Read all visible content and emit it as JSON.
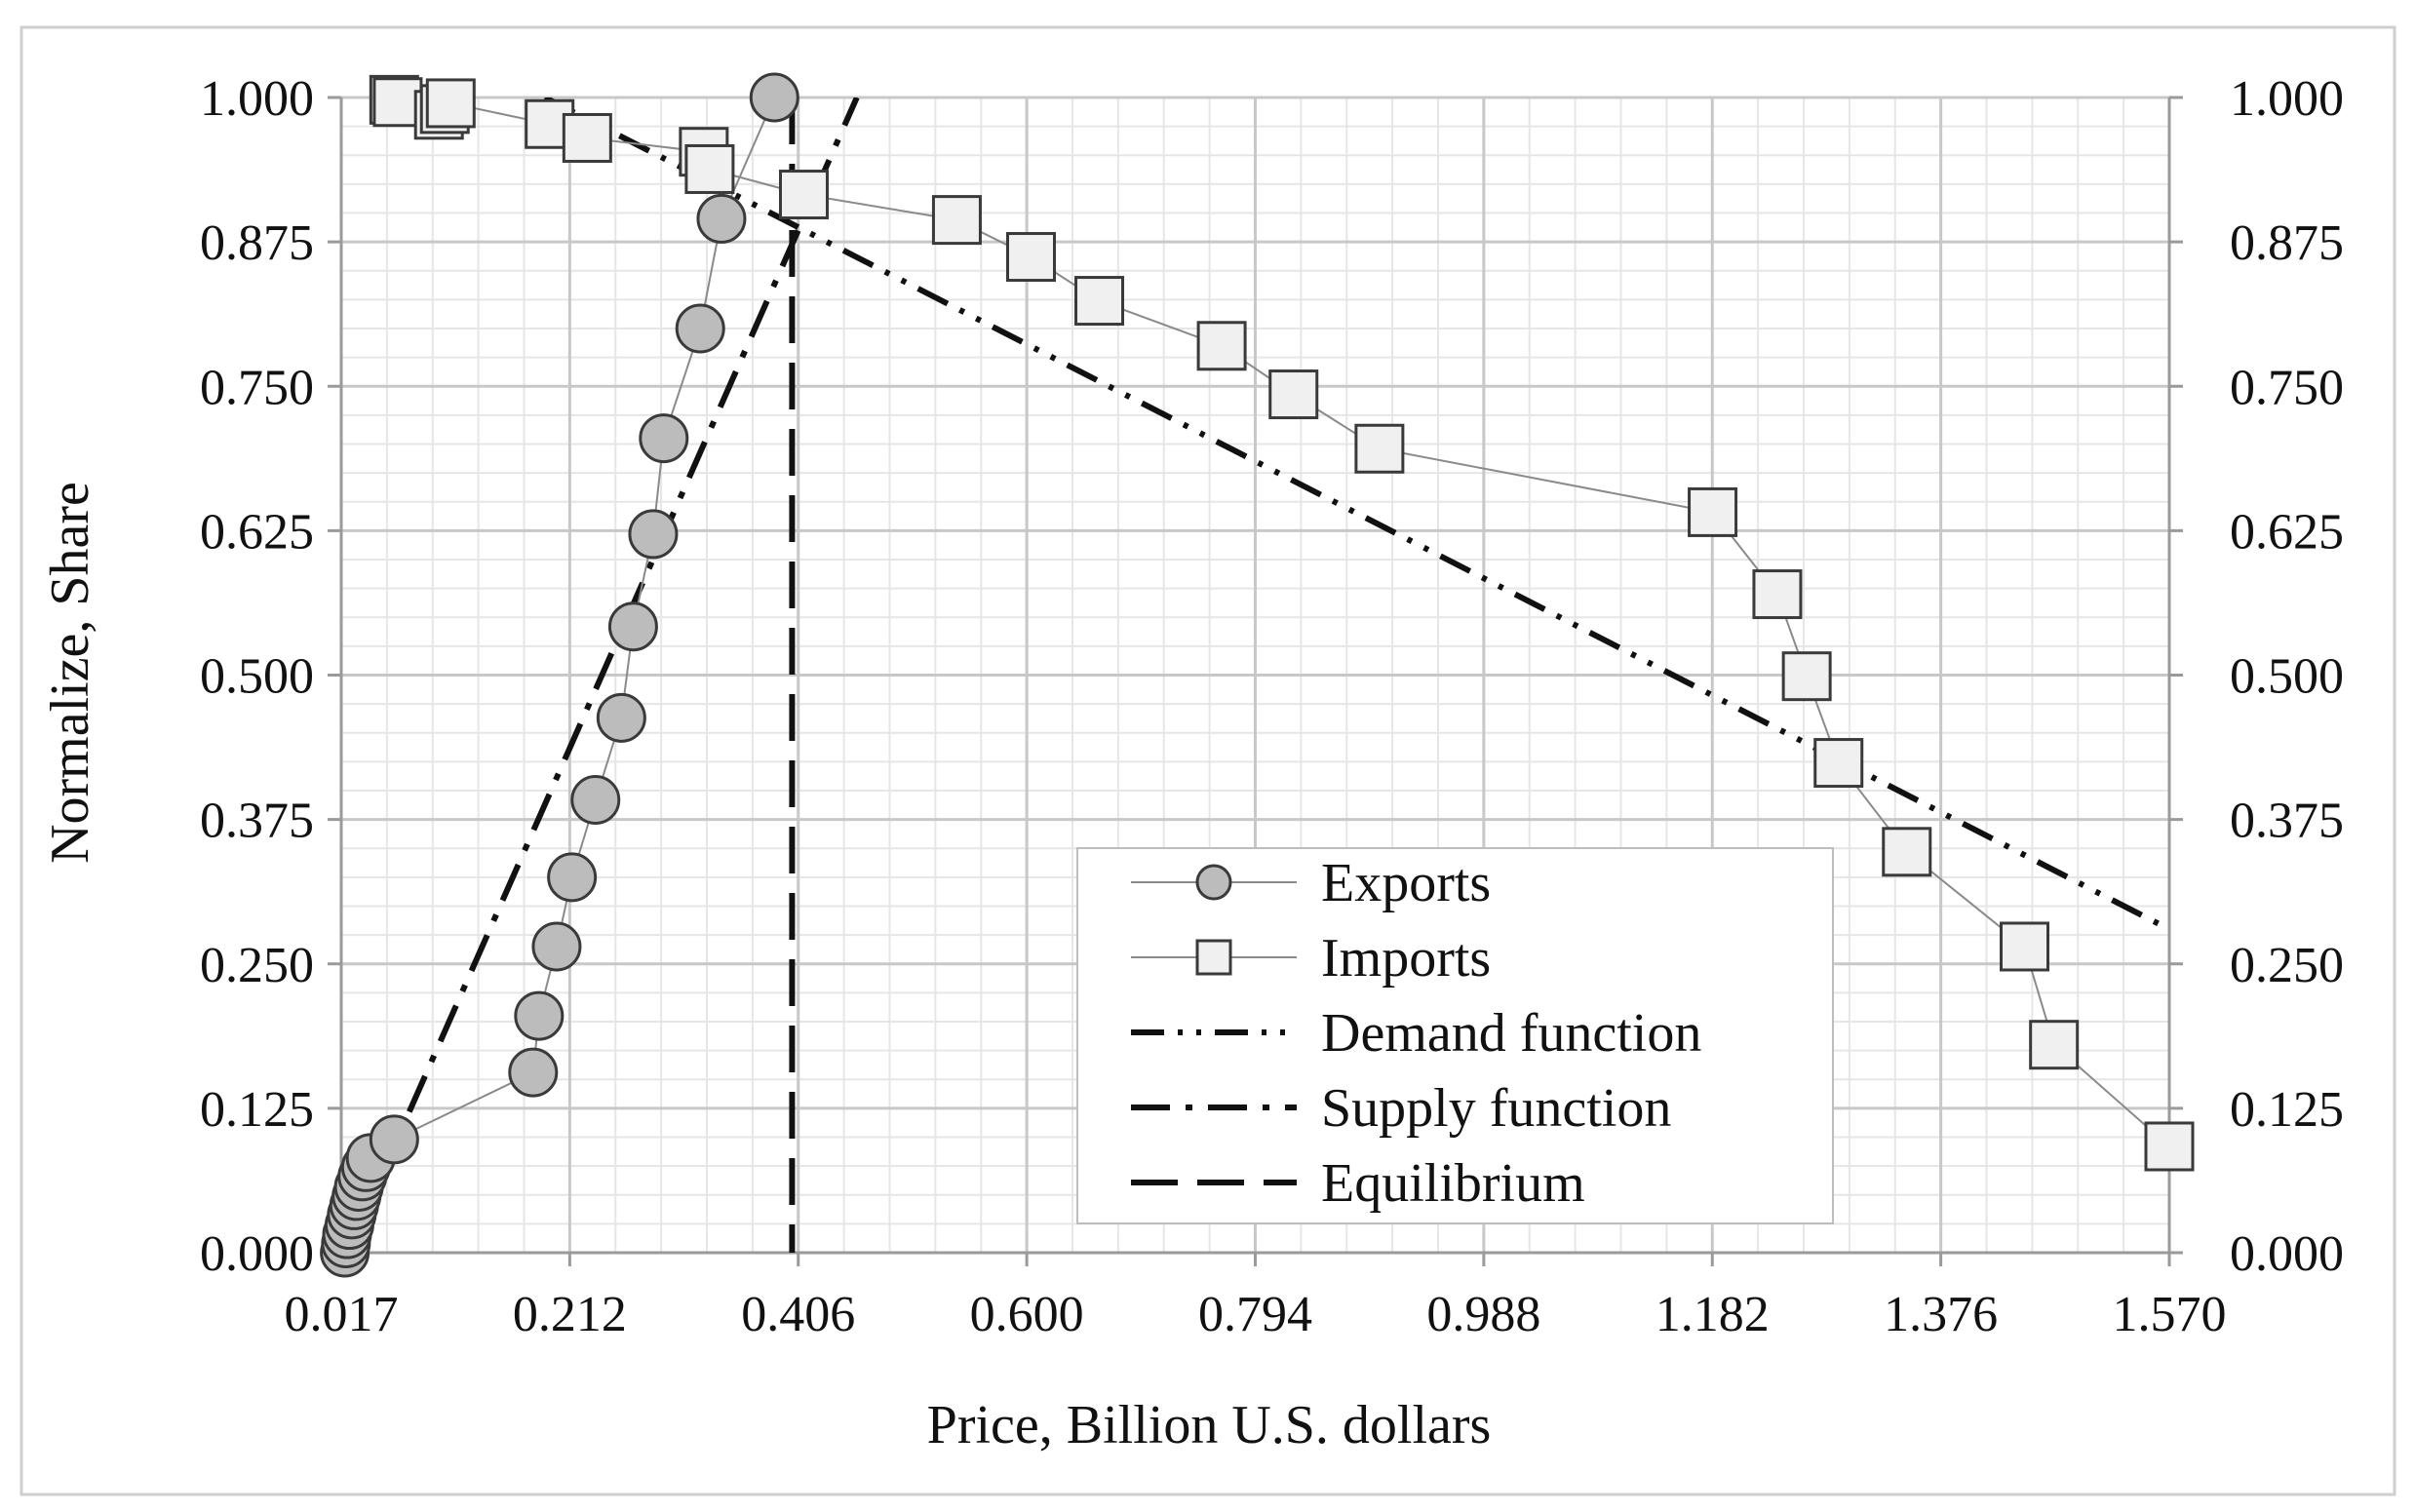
{
  "chart_data": {
    "type": "scatter",
    "title": "",
    "xlabel": "Price, Billion U.S. dollars",
    "ylabel": "Normalize, Share",
    "xlim": [
      0.017,
      1.57
    ],
    "ylim": [
      0.0,
      1.0
    ],
    "x_ticks": [
      "0.017",
      "0.212",
      "0.406",
      "0.600",
      "0.794",
      "0.988",
      "1.182",
      "1.376",
      "1.570"
    ],
    "y_ticks": [
      "0.000",
      "0.125",
      "0.250",
      "0.375",
      "0.500",
      "0.625",
      "0.750",
      "0.875",
      "1.000"
    ],
    "y_ticks_right": [
      "0.000",
      "0.125",
      "0.250",
      "0.375",
      "0.500",
      "0.625",
      "0.750",
      "0.875",
      "1.000"
    ],
    "grid": true,
    "legend_position": "lower-center",
    "series": [
      {
        "name": "Exports",
        "kind": "markers-line",
        "marker": "circle",
        "color": "#bcbcbc",
        "points": [
          [
            0.02,
            0.0
          ],
          [
            0.021,
            0.008
          ],
          [
            0.022,
            0.016
          ],
          [
            0.024,
            0.024
          ],
          [
            0.026,
            0.033
          ],
          [
            0.028,
            0.041
          ],
          [
            0.03,
            0.049
          ],
          [
            0.032,
            0.057
          ],
          [
            0.035,
            0.066
          ],
          [
            0.038,
            0.074
          ],
          [
            0.042,
            0.082
          ],
          [
            0.062,
            0.098
          ],
          [
            0.18,
            0.156
          ],
          [
            0.185,
            0.205
          ],
          [
            0.2,
            0.265
          ],
          [
            0.213,
            0.325
          ],
          [
            0.233,
            0.392
          ],
          [
            0.255,
            0.463
          ],
          [
            0.265,
            0.542
          ],
          [
            0.282,
            0.622
          ],
          [
            0.291,
            0.705
          ],
          [
            0.322,
            0.8
          ],
          [
            0.34,
            0.895
          ],
          [
            0.385,
            1.0
          ]
        ]
      },
      {
        "name": "Imports",
        "kind": "markers-line",
        "marker": "square",
        "color": "#f0f0f0",
        "points": [
          [
            0.062,
            0.998
          ],
          [
            0.065,
            0.996
          ],
          [
            0.1,
            0.985
          ],
          [
            0.105,
            0.99
          ],
          [
            0.11,
            0.995
          ],
          [
            0.194,
            0.977
          ],
          [
            0.226,
            0.965
          ],
          [
            0.325,
            0.953
          ],
          [
            0.33,
            0.938
          ],
          [
            0.41,
            0.916
          ],
          [
            0.54,
            0.894
          ],
          [
            0.603,
            0.862
          ],
          [
            0.661,
            0.824
          ],
          [
            0.765,
            0.785
          ],
          [
            0.826,
            0.743
          ],
          [
            0.899,
            0.696
          ],
          [
            1.182,
            0.641
          ],
          [
            1.237,
            0.57
          ],
          [
            1.262,
            0.499
          ],
          [
            1.289,
            0.424
          ],
          [
            1.347,
            0.347
          ],
          [
            1.447,
            0.265
          ],
          [
            1.472,
            0.18
          ],
          [
            1.57,
            0.092
          ]
        ]
      },
      {
        "name": "Demand function",
        "kind": "line",
        "dash": "dash-dot-dot",
        "color": "#111111",
        "points": [
          [
            0.19,
            1.0
          ],
          [
            1.57,
            0.28
          ]
        ]
      },
      {
        "name": "Supply function",
        "kind": "line",
        "dash": "dash-dot",
        "color": "#111111",
        "points": [
          [
            0.022,
            0.0
          ],
          [
            0.455,
            1.0
          ]
        ]
      },
      {
        "name": "Equilibrium",
        "kind": "vline",
        "dash": "long-dash",
        "color": "#111111",
        "x": 0.4
      }
    ]
  }
}
